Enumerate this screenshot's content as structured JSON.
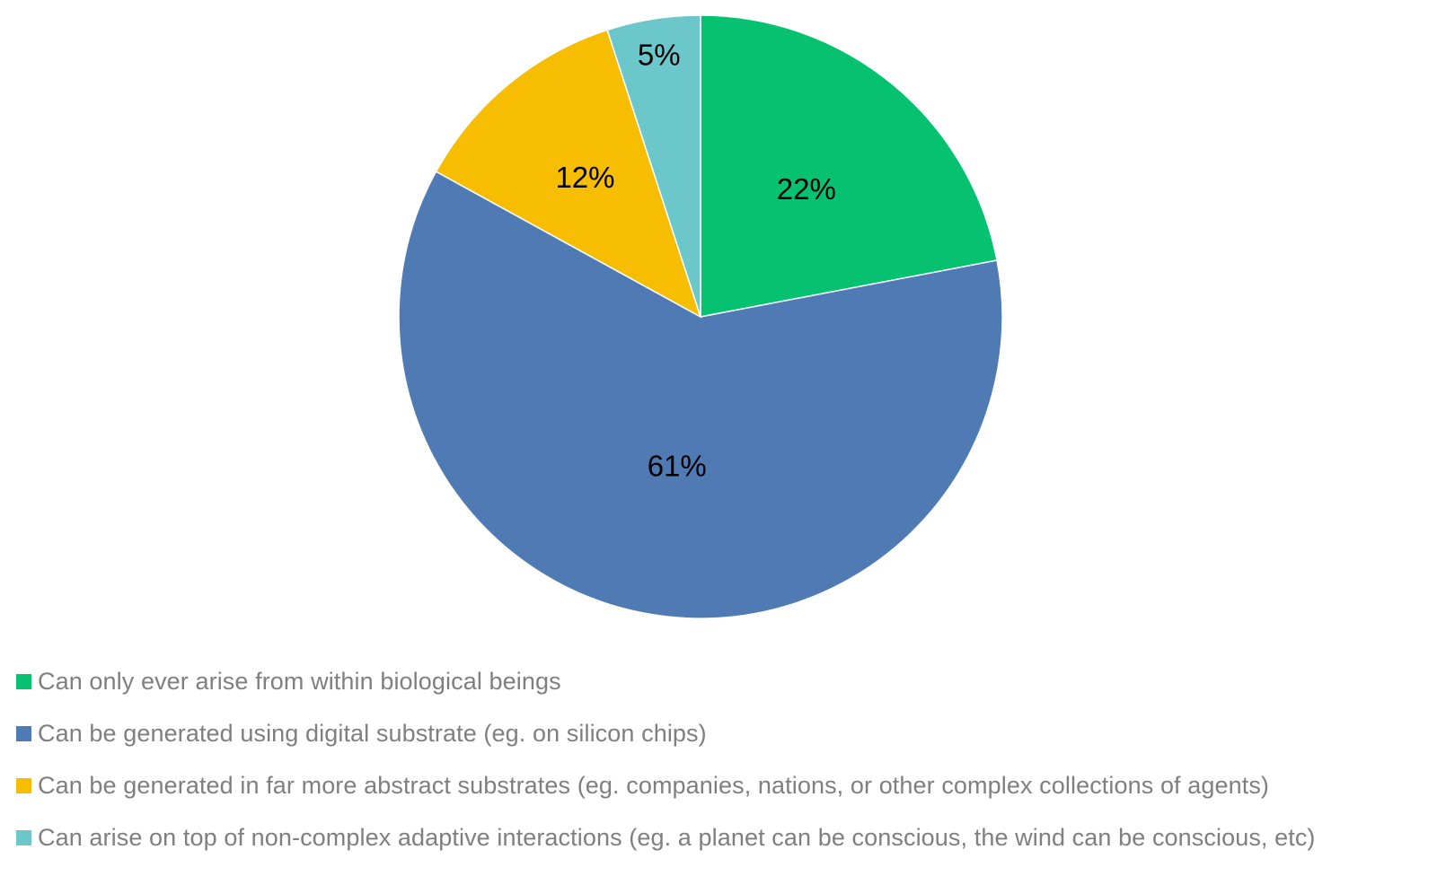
{
  "chart_data": {
    "type": "pie",
    "categories": [
      "Can only ever arise from within biological beings",
      "Can be generated using digital substrate (eg. on silicon chips)",
      "Can be generated in far more abstract substrates (eg. companies, nations, or other complex collections of agents)",
      "Can arise on top of non-complex adaptive interactions (eg. a planet can be conscious, the wind can be conscious, etc)"
    ],
    "values": [
      22,
      61,
      12,
      5
    ],
    "data_labels": [
      "22%",
      "61%",
      "12%",
      "5%"
    ],
    "colors": [
      "#06c270",
      "#4f7ab3",
      "#f7bd00",
      "#6cc7cb"
    ],
    "start_angle_deg": 0,
    "direction": "clockwise",
    "legend_position": "bottom-left",
    "title": ""
  }
}
